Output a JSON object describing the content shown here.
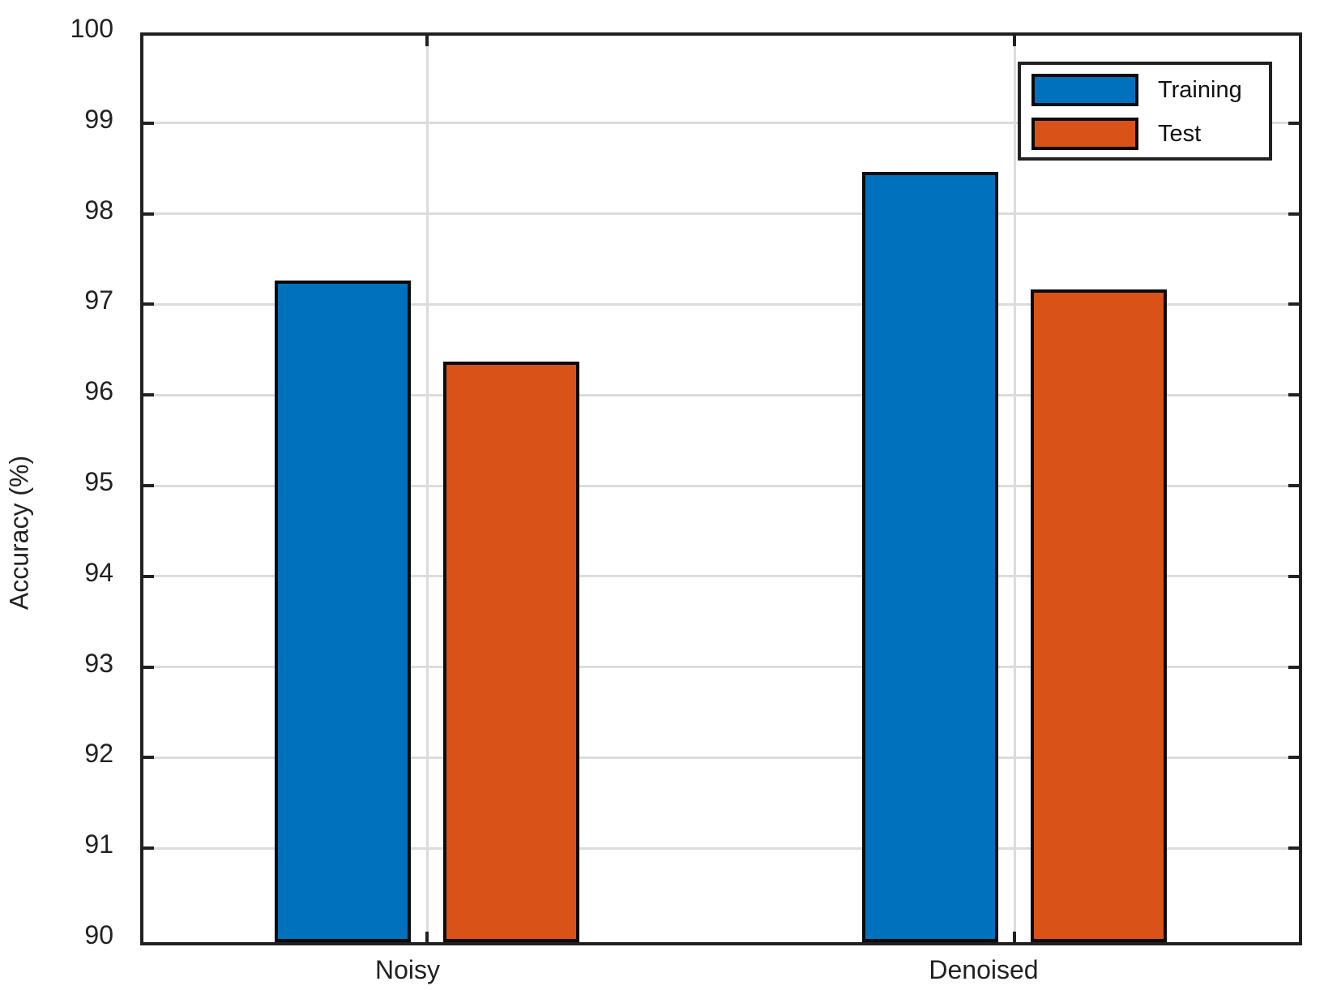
{
  "chart_data": {
    "type": "bar",
    "categories": [
      "Noisy",
      "Denoised"
    ],
    "series": [
      {
        "name": "Training",
        "color": "#0072BD",
        "values": [
          97.3,
          98.5
        ]
      },
      {
        "name": "Test",
        "color": "#D95319",
        "values": [
          96.4,
          97.2
        ]
      }
    ],
    "title": "",
    "xlabel": "",
    "ylabel": "Accuracy (%)",
    "ylim": [
      90,
      100
    ],
    "ytick_step": 1,
    "grid": true,
    "legend_position": "northeast",
    "bar_edge_color": "#0b0b0b",
    "axis_color": "#212121",
    "grid_color": "#dcdcdc"
  },
  "axes": {
    "ylabel": "Accuracy (%)",
    "ytick_labels": [
      "90",
      "91",
      "92",
      "93",
      "94",
      "95",
      "96",
      "97",
      "98",
      "99",
      "100"
    ],
    "xtick_labels": [
      "Noisy",
      "Denoised"
    ]
  },
  "legend": {
    "items": [
      {
        "label": "Training",
        "color": "#0072BD"
      },
      {
        "label": "Test",
        "color": "#D95319"
      }
    ]
  }
}
